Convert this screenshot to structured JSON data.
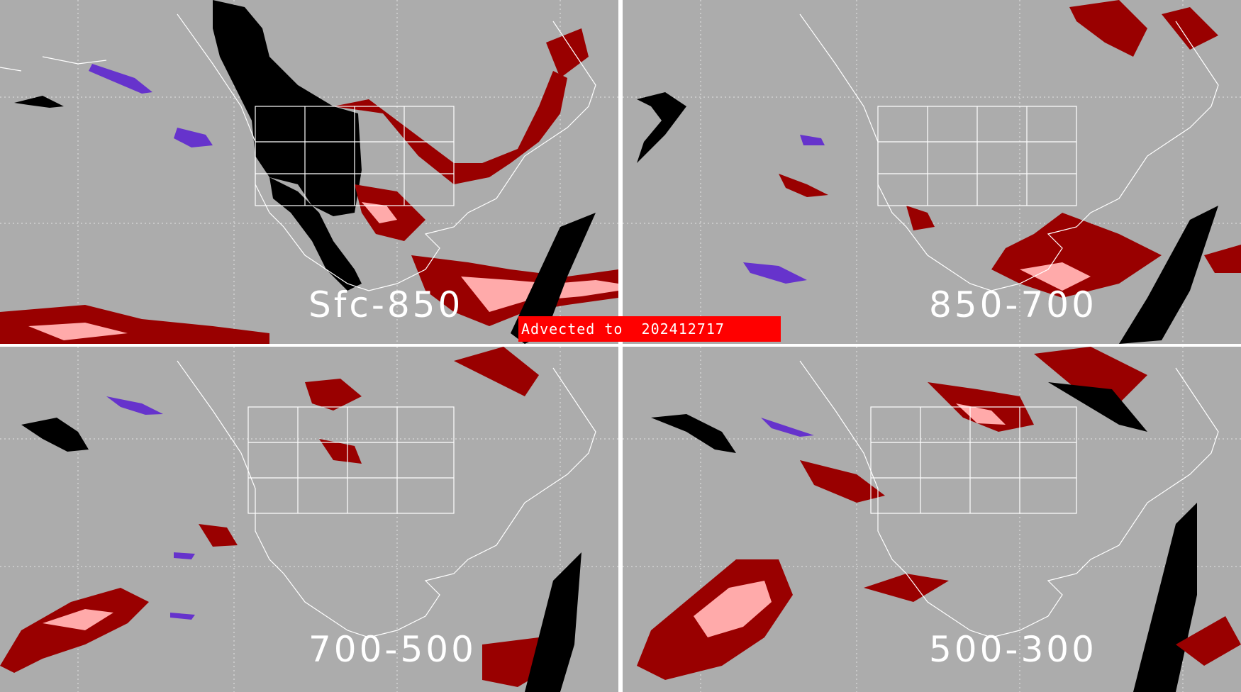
{
  "banner": {
    "text": "Advected to  202412717"
  },
  "colors": {
    "ocean_land_background": "#acacac",
    "borders": "#ffffff",
    "gridlines": "#e4e4e4",
    "dark_red": "#990000",
    "pink": "#ffaaaa",
    "red": "#dd0000",
    "black": "#000000",
    "purple": "#6633cc",
    "banner": "#ff0000"
  },
  "panels": [
    {
      "id": "top-left",
      "layer": "Sfc-850"
    },
    {
      "id": "top-right",
      "layer": "850-700"
    },
    {
      "id": "bottom-left",
      "layer": "700-500"
    },
    {
      "id": "bottom-right",
      "layer": "500-300"
    }
  ]
}
